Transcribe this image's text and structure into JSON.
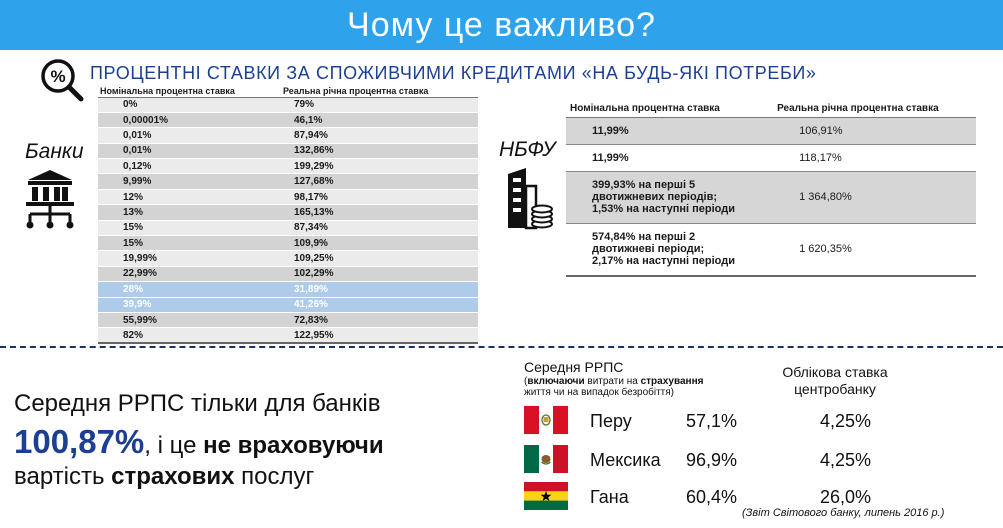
{
  "header": {
    "title": "Чому це важливо?",
    "subtitle": "ПРОЦЕНТНІ СТАВКИ ЗА СПОЖИВЧИМИ КРЕДИТАМИ «НА БУДЬ-ЯКІ ПОТРЕБИ»"
  },
  "banks": {
    "label": "Банки",
    "headers": [
      "Номінальна процентна ставка",
      "Реальна річна процентна ставка"
    ],
    "rows": [
      {
        "nominal": "0%",
        "real": "79%"
      },
      {
        "nominal": "0,00001%",
        "real": "46,1%"
      },
      {
        "nominal": "0,01%",
        "real": "87,94%"
      },
      {
        "nominal": "0,01%",
        "real": "132,86%"
      },
      {
        "nominal": "0,12%",
        "real": "199,29%"
      },
      {
        "nominal": "9,99%",
        "real": "127,68%"
      },
      {
        "nominal": "12%",
        "real": "98,17%"
      },
      {
        "nominal": "13%",
        "real": "165,13%"
      },
      {
        "nominal": "15%",
        "real": "87,34%"
      },
      {
        "nominal": "15%",
        "real": "109,9%"
      },
      {
        "nominal": "19,99%",
        "real": "109,25%"
      },
      {
        "nominal": "22,99%",
        "real": "102,29%"
      },
      {
        "nominal": "28%",
        "real": "31,89%"
      },
      {
        "nominal": "39,9%",
        "real": "41,26%"
      },
      {
        "nominal": "55,99%",
        "real": "72,83%"
      },
      {
        "nominal": "82%",
        "real": "122,95%"
      }
    ]
  },
  "nbfu": {
    "label": "НБФУ",
    "headers": [
      "Номінальна процентна ставка",
      "Реальна річна процентна ставка"
    ],
    "rows": [
      {
        "nominal": [
          "11,99%"
        ],
        "real": "106,91%"
      },
      {
        "nominal": [
          "11,99%"
        ],
        "real": "118,17%"
      },
      {
        "nominal": [
          "399,93% на перші 5",
          "двотижневих періодів;",
          "1,53% на наступні періоди"
        ],
        "real": "1 364,80%"
      },
      {
        "nominal": [
          "574,84% на перші 2",
          "двотижневі періоди;",
          "2,17% на наступні періоди"
        ],
        "real": "1 620,35%"
      }
    ]
  },
  "bottom_left": {
    "line1": "Середня РРПС тільки для банків",
    "value": "100,87%",
    "line2_mid": ", і це ",
    "line2_bold": "не враховуючи",
    "line3_start": "вартість ",
    "line3_bold": "страхових",
    "line3_end": "  послуг"
  },
  "comparison": {
    "col1_title": "Середня РРПС",
    "col1_note_open": "(",
    "col1_note_b1": "включаючи",
    "col1_note_mid": " витрати на ",
    "col1_note_b2": "страхування",
    "col1_note_end": "життя чи на випадок безробіття)",
    "col2_title": "Облікова ставка центробанку",
    "rows": [
      {
        "country": "Перу",
        "rrps": "57,1%",
        "rate": "4,25%",
        "flag": "peru-flag"
      },
      {
        "country": "Мексика",
        "rrps": "96,9%",
        "rate": "4,25%",
        "flag": "mexico-flag"
      },
      {
        "country": "Гана",
        "rrps": "60,4%",
        "rate": "26,0%",
        "flag": "ghana-flag"
      }
    ]
  },
  "source": "(Звіт Світового банку, липень 2016 р.)",
  "colors": {
    "banner": "#2ea3ec",
    "accent_text": "#1c3f94",
    "highlight_row": "#aecbe9"
  },
  "icons": [
    "percent-magnifier-icon",
    "bank-building-icon",
    "office-coins-icon"
  ]
}
